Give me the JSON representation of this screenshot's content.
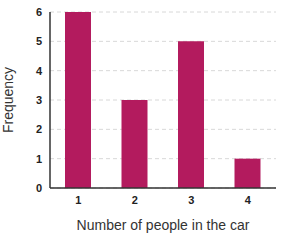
{
  "chart_data": {
    "type": "bar",
    "x_label": "Number of people in the car",
    "y_label": "Frequency",
    "categories": [
      "1",
      "2",
      "3",
      "4"
    ],
    "values": [
      6,
      3,
      5,
      1
    ],
    "color": "#b31b5e",
    "ylim": [
      0,
      6
    ],
    "yticks": [
      0,
      1,
      2,
      3,
      4,
      5,
      6
    ],
    "grid": true
  }
}
